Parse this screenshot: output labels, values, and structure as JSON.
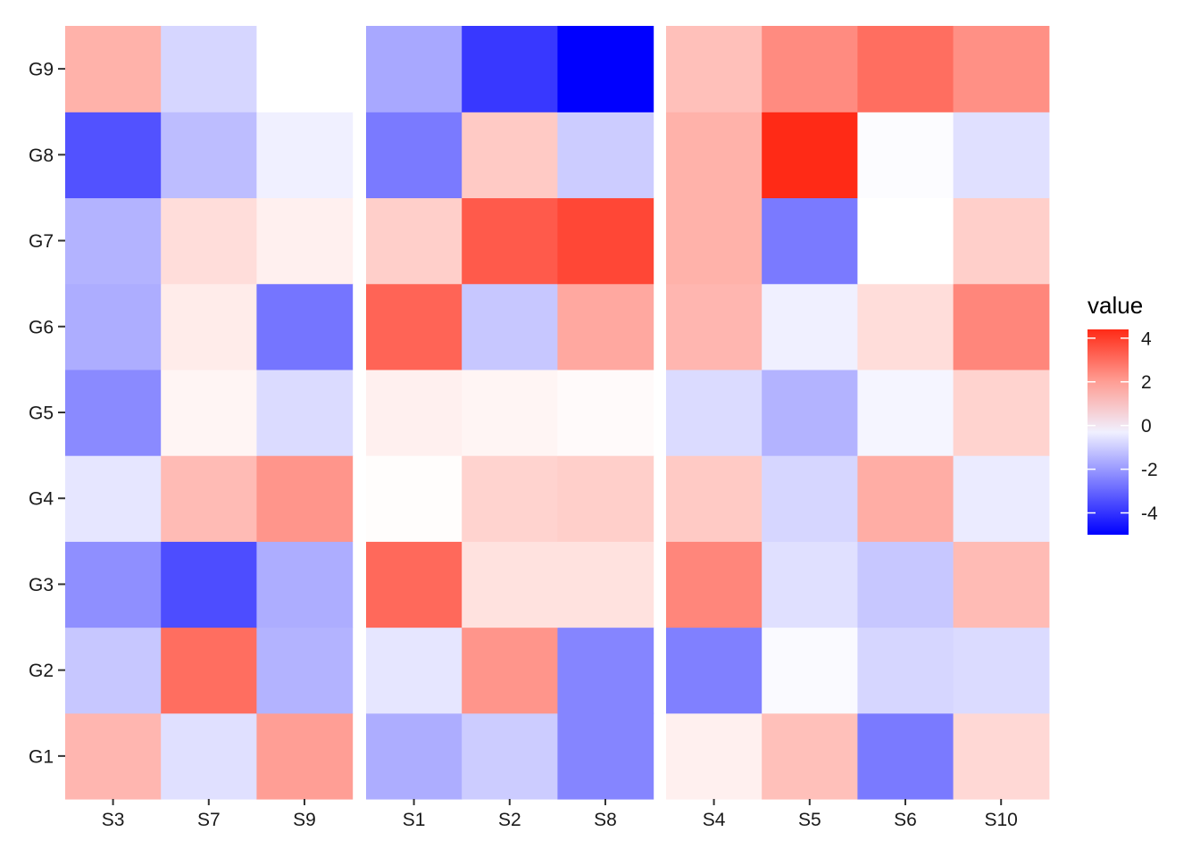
{
  "chart_data": {
    "type": "heatmap",
    "rows": [
      "G1",
      "G2",
      "G3",
      "G4",
      "G5",
      "G6",
      "G7",
      "G8",
      "G9"
    ],
    "panels": [
      {
        "columns": [
          "S3",
          "S7",
          "S9"
        ],
        "values": [
          [
            1.5,
            -0.6,
            2.0
          ],
          [
            -1.1,
            3.0,
            -1.5
          ],
          [
            -2.2,
            -3.5,
            -1.6
          ],
          [
            -0.5,
            1.4,
            2.2
          ],
          [
            -2.3,
            0.2,
            -0.7
          ],
          [
            -1.6,
            0.4,
            -2.7
          ],
          [
            -1.5,
            0.7,
            0.3
          ],
          [
            -3.4,
            -1.3,
            -0.3
          ],
          [
            1.6,
            -0.8,
            null
          ]
        ]
      },
      {
        "columns": [
          "S1",
          "S2",
          "S8"
        ],
        "values": [
          [
            -1.6,
            -1.0,
            -2.4
          ],
          [
            -0.5,
            2.2,
            -2.4
          ],
          [
            3.1,
            0.6,
            0.6
          ],
          [
            0.05,
            0.9,
            1.0
          ],
          [
            0.3,
            0.2,
            0.1
          ],
          [
            3.2,
            -1.1,
            1.8
          ],
          [
            1.0,
            3.4,
            3.8
          ],
          [
            -2.6,
            1.1,
            -1.0
          ],
          [
            -1.7,
            -3.9,
            -5.0
          ]
        ]
      },
      {
        "columns": [
          "S4",
          "S5",
          "S6",
          "S10"
        ],
        "values": [
          [
            0.3,
            1.3,
            -2.6,
            0.8
          ],
          [
            -2.5,
            -0.1,
            -0.8,
            -0.7
          ],
          [
            2.5,
            -0.6,
            -1.1,
            1.4
          ],
          [
            1.1,
            -0.8,
            1.7,
            -0.4
          ],
          [
            -0.7,
            -1.5,
            -0.2,
            0.9
          ],
          [
            1.5,
            -0.3,
            0.7,
            2.5
          ],
          [
            1.6,
            -2.6,
            0.0,
            1.0
          ],
          [
            1.6,
            4.4,
            -0.05,
            -0.6
          ],
          [
            1.3,
            2.4,
            3.0,
            2.3
          ]
        ]
      }
    ],
    "scale": {
      "low_color": "#0000FF",
      "mid_color": "#FFFFFF",
      "high_color": "#FF2A16",
      "domain": [
        -5.0,
        4.4
      ],
      "legend_title": "value",
      "legend_breaks": [
        4,
        2,
        0,
        -2,
        -4
      ]
    },
    "na_color": "#FFFFFF"
  }
}
